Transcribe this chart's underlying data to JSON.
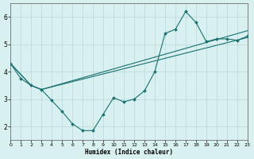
{
  "xlabel": "Humidex (Indice chaleur)",
  "xlim": [
    0,
    23
  ],
  "ylim": [
    1.5,
    6.5
  ],
  "xticks": [
    0,
    1,
    2,
    3,
    4,
    5,
    6,
    7,
    8,
    9,
    10,
    11,
    12,
    13,
    14,
    15,
    16,
    17,
    18,
    19,
    20,
    21,
    22,
    23
  ],
  "yticks": [
    2,
    3,
    4,
    5,
    6
  ],
  "line_color": "#1a7070",
  "bg_color": "#d9f0f0",
  "grid_color": "#b8d8d8",
  "line1_x": [
    0,
    1,
    2,
    3,
    4,
    5,
    6,
    7,
    8,
    9,
    10,
    11,
    12,
    13,
    14,
    15,
    16,
    17,
    18,
    19,
    20,
    21,
    22,
    23
  ],
  "line1_y": [
    4.3,
    3.75,
    3.5,
    3.35,
    2.95,
    2.55,
    2.1,
    1.85,
    1.85,
    2.45,
    3.05,
    2.9,
    3.0,
    3.3,
    4.0,
    5.4,
    5.55,
    6.2,
    5.8,
    5.1,
    5.2,
    5.2,
    5.15,
    5.3
  ],
  "line2_x": [
    0,
    2,
    3,
    23
  ],
  "line2_y": [
    4.3,
    3.5,
    3.35,
    5.5
  ],
  "line3_x": [
    0,
    2,
    3,
    23
  ],
  "line3_y": [
    4.3,
    3.5,
    3.35,
    5.25
  ]
}
